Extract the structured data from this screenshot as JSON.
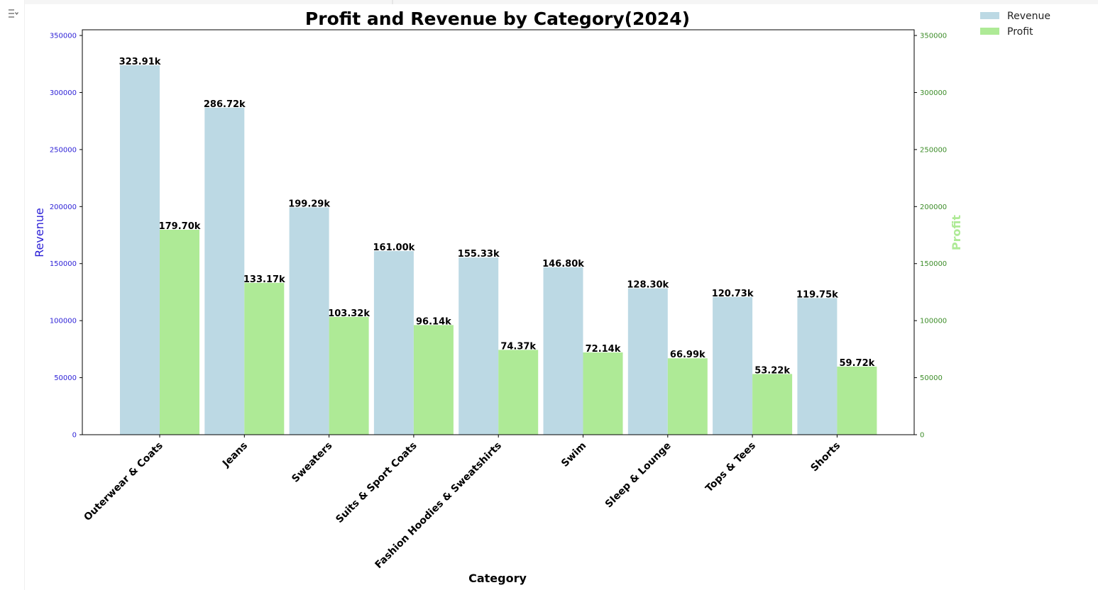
{
  "chart_data": {
    "type": "bar",
    "title": "Profit and Revenue by Category(2024)",
    "xlabel": "Category",
    "ylabel_left": "Revenue",
    "ylabel_right": "Profit",
    "ylim": [
      0,
      355000
    ],
    "yticks": [
      0,
      50000,
      100000,
      150000,
      200000,
      250000,
      300000,
      350000
    ],
    "categories": [
      "Outerwear & Coats",
      "Jeans",
      "Sweaters",
      "Suits & Sport Coats",
      "Fashion Hoodies & Sweatshirts",
      "Swim",
      "Sleep & Lounge",
      "Tops & Tees",
      "Shorts"
    ],
    "series": [
      {
        "name": "Revenue",
        "color": "#bcd9e4",
        "axis": "left",
        "values": [
          323910,
          286720,
          199290,
          161000,
          155330,
          146800,
          128300,
          120730,
          119750
        ],
        "labels": [
          "323.91k",
          "286.72k",
          "199.29k",
          "161.00k",
          "155.33k",
          "146.80k",
          "128.30k",
          "120.73k",
          "119.75k"
        ]
      },
      {
        "name": "Profit",
        "color": "#aeea96",
        "axis": "right",
        "values": [
          179700,
          133170,
          103320,
          96140,
          74370,
          72140,
          66990,
          53220,
          59720
        ],
        "labels": [
          "179.70k",
          "133.17k",
          "103.32k",
          "96.14k",
          "74.37k",
          "72.14k",
          "66.99k",
          "53.22k",
          "59.72k"
        ]
      }
    ],
    "legend_position": "top-right outside",
    "grid": false,
    "colors": {
      "left_axis": "#2b1fd6",
      "right_axis": "#3c8c28",
      "right_label": "#aeea96"
    }
  },
  "ui": {
    "output_toggle_icon": "output-collapse-icon"
  }
}
